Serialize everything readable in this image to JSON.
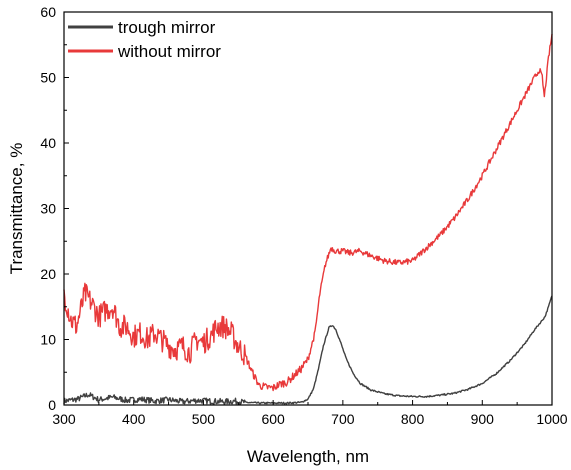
{
  "chart_data": {
    "type": "line",
    "xlabel": "Wavelength, nm",
    "ylabel": "Transmittance, %",
    "xlim": [
      300,
      1000
    ],
    "ylim": [
      0,
      60
    ],
    "xticks": [
      300,
      400,
      500,
      600,
      700,
      800,
      900,
      1000
    ],
    "yticks": [
      0,
      10,
      20,
      30,
      40,
      50,
      60
    ],
    "grid": false,
    "legend_position": "top-left",
    "series": [
      {
        "name": "trough mirror",
        "color": "#404040",
        "points": [
          [
            300,
            0.6
          ],
          [
            320,
            0.9
          ],
          [
            335,
            1.6
          ],
          [
            350,
            0.8
          ],
          [
            370,
            1.2
          ],
          [
            390,
            0.7
          ],
          [
            410,
            0.9
          ],
          [
            430,
            0.6
          ],
          [
            450,
            0.8
          ],
          [
            470,
            0.5
          ],
          [
            490,
            0.7
          ],
          [
            510,
            0.6
          ],
          [
            530,
            0.5
          ],
          [
            545,
            0.6
          ],
          [
            560,
            0.4
          ],
          [
            580,
            0.3
          ],
          [
            600,
            0.3
          ],
          [
            620,
            0.3
          ],
          [
            640,
            0.4
          ],
          [
            650,
            0.9
          ],
          [
            658,
            2.5
          ],
          [
            665,
            5.5
          ],
          [
            672,
            9.0
          ],
          [
            680,
            11.8
          ],
          [
            685,
            12.2
          ],
          [
            690,
            11.5
          ],
          [
            697,
            9.5
          ],
          [
            705,
            7.0
          ],
          [
            715,
            4.8
          ],
          [
            725,
            3.3
          ],
          [
            740,
            2.3
          ],
          [
            760,
            1.7
          ],
          [
            780,
            1.4
          ],
          [
            800,
            1.3
          ],
          [
            820,
            1.3
          ],
          [
            840,
            1.5
          ],
          [
            860,
            1.8
          ],
          [
            880,
            2.4
          ],
          [
            900,
            3.3
          ],
          [
            920,
            4.8
          ],
          [
            940,
            6.8
          ],
          [
            960,
            9.2
          ],
          [
            975,
            11.5
          ],
          [
            985,
            12.8
          ],
          [
            990,
            13.5
          ],
          [
            995,
            15.0
          ],
          [
            1000,
            16.7
          ]
        ]
      },
      {
        "name": "without mirror",
        "color": "#e8393a",
        "points": [
          [
            300,
            17
          ],
          [
            310,
            13
          ],
          [
            318,
            12
          ],
          [
            330,
            17
          ],
          [
            340,
            15.5
          ],
          [
            350,
            13.5
          ],
          [
            360,
            14.5
          ],
          [
            370,
            15
          ],
          [
            380,
            12
          ],
          [
            390,
            12
          ],
          [
            400,
            10.5
          ],
          [
            410,
            11
          ],
          [
            420,
            10
          ],
          [
            430,
            11
          ],
          [
            440,
            10
          ],
          [
            450,
            9
          ],
          [
            460,
            8.5
          ],
          [
            470,
            9
          ],
          [
            480,
            8
          ],
          [
            490,
            10
          ],
          [
            500,
            9.5
          ],
          [
            510,
            10.5
          ],
          [
            520,
            12
          ],
          [
            530,
            12
          ],
          [
            540,
            11
          ],
          [
            550,
            9
          ],
          [
            560,
            7.5
          ],
          [
            570,
            5
          ],
          [
            580,
            3
          ],
          [
            590,
            2.7
          ],
          [
            600,
            2.6
          ],
          [
            610,
            3.2
          ],
          [
            620,
            3.5
          ],
          [
            630,
            4.5
          ],
          [
            640,
            5.5
          ],
          [
            650,
            7
          ],
          [
            660,
            11
          ],
          [
            667,
            17
          ],
          [
            675,
            21.5
          ],
          [
            683,
            24
          ],
          [
            690,
            23.5
          ],
          [
            700,
            23.5
          ],
          [
            710,
            23.2
          ],
          [
            725,
            23.5
          ],
          [
            740,
            22.8
          ],
          [
            760,
            22
          ],
          [
            780,
            21.7
          ],
          [
            800,
            22
          ],
          [
            820,
            24
          ],
          [
            840,
            26
          ],
          [
            860,
            28.5
          ],
          [
            880,
            31.5
          ],
          [
            900,
            35
          ],
          [
            920,
            39
          ],
          [
            940,
            43
          ],
          [
            960,
            47
          ],
          [
            975,
            50
          ],
          [
            982,
            51.2
          ],
          [
            986,
            50
          ],
          [
            989,
            47
          ],
          [
            992,
            50
          ],
          [
            995,
            53
          ],
          [
            1000,
            56.5
          ]
        ]
      }
    ]
  }
}
